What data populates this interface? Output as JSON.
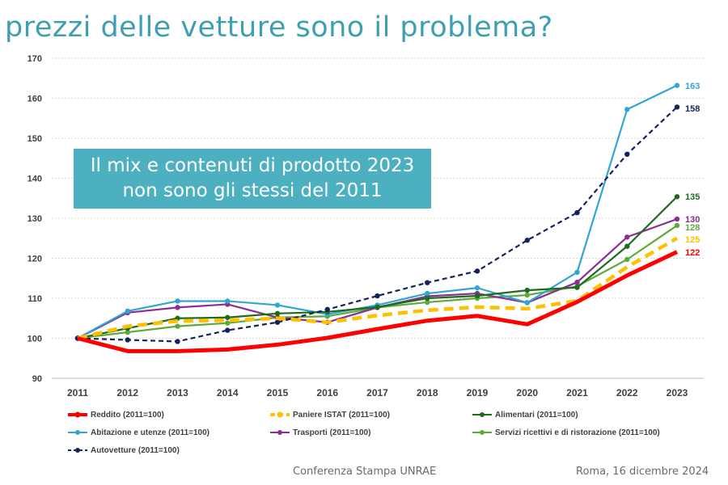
{
  "title": "prezzi delle vetture sono il problema?",
  "callout": {
    "line1": "Il mix e contenuti di prodotto 2023",
    "line2": "non sono gli stessi del 2011"
  },
  "footer": {
    "event": "Conferenza Stampa UNRAE",
    "place_date": "Roma, 16 dicembre 2024"
  },
  "chart_data": {
    "type": "line",
    "x": [
      "2011",
      "2012",
      "2013",
      "2014",
      "2015",
      "2016",
      "2017",
      "2018",
      "2019",
      "2020",
      "2021",
      "2022",
      "2023"
    ],
    "ylim": [
      90,
      170
    ],
    "yticks": [
      90,
      100,
      110,
      120,
      130,
      140,
      150,
      160,
      170
    ],
    "grid": true,
    "legend_position": "bottom",
    "series": [
      {
        "name": "Reddito (2011=100)",
        "color": "#ff0000",
        "style": "thick",
        "values": [
          100,
          96.8,
          96.8,
          97.2,
          98.4,
          100.1,
          102.3,
          104.4,
          105.6,
          103.5,
          109.1,
          115.7,
          121.6
        ],
        "end_label": "122"
      },
      {
        "name": "Paniere ISTAT (2011=100)",
        "color": "#ffc000",
        "style": "dashed-thick",
        "values": [
          100,
          103.0,
          104.3,
          104.5,
          105.0,
          104.0,
          105.7,
          107.0,
          107.8,
          107.4,
          109.4,
          117.8,
          125.0
        ],
        "end_label": "125"
      },
      {
        "name": "Alimentari (2011=100)",
        "color": "#1e6b1e",
        "style": "solid",
        "values": [
          100,
          102.5,
          105.0,
          105.2,
          106.2,
          106.6,
          107.8,
          110.0,
          110.6,
          112.0,
          112.7,
          123.0,
          135.4
        ],
        "end_label": "135"
      },
      {
        "name": "Abitazione e utenze (2011=100)",
        "color": "#31a6d1",
        "style": "solid",
        "values": [
          100,
          106.8,
          109.3,
          109.3,
          108.3,
          106.0,
          108.3,
          111.2,
          112.6,
          108.9,
          116.5,
          157.2,
          163.2
        ],
        "end_label": "163"
      },
      {
        "name": "Trasporti (2011=100)",
        "color": "#8b2e92",
        "style": "solid",
        "values": [
          100,
          106.4,
          107.7,
          108.5,
          105.2,
          104.0,
          107.7,
          110.5,
          111.2,
          108.9,
          114.0,
          125.3,
          129.8
        ],
        "end_label": "130"
      },
      {
        "name": "Servizi ricettivi e di ristorazione (2011=100)",
        "color": "#5daa3a",
        "style": "solid",
        "values": [
          100,
          101.5,
          103.0,
          103.8,
          105.2,
          105.5,
          107.7,
          109.0,
          110.0,
          110.8,
          113.0,
          119.7,
          128.2
        ],
        "end_label": "128"
      },
      {
        "name": "Autovetture (2011=100)",
        "color": "#14235e",
        "style": "dashed",
        "values": [
          100,
          99.6,
          99.2,
          102.0,
          104.0,
          107.2,
          110.6,
          113.9,
          116.8,
          124.5,
          131.4,
          146.0,
          157.8
        ],
        "end_label": "158"
      }
    ]
  }
}
